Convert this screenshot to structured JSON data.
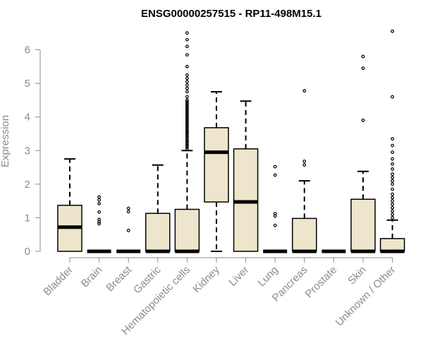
{
  "chart_data": {
    "type": "boxplot",
    "title": "ENSG00000257515 - RP11-498M15.1",
    "ylabel": "Expression",
    "xlabel": "",
    "ylim": [
      0,
      6.6
    ],
    "yticks": [
      0,
      1,
      2,
      3,
      4,
      5,
      6
    ],
    "box_fill": "#ede6cc",
    "outline_color": "#000000",
    "axis_color": "#8c8c8c",
    "categories": [
      "Bladder",
      "Brain",
      "Breast",
      "Gastric",
      "Hematopoietic cells",
      "Kidney",
      "Liver",
      "Lung",
      "Pancreas",
      "Prostate",
      "Skin",
      "Unknown / Other"
    ],
    "boxes": [
      {
        "q1": 0.0,
        "median": 0.72,
        "q3": 1.37,
        "whisker_low": 0.0,
        "whisker_high": 2.75,
        "outliers": []
      },
      {
        "q1": 0.0,
        "median": 0.0,
        "q3": 0.0,
        "whisker_low": 0.0,
        "whisker_high": 0.0,
        "outliers": [
          0.82,
          0.88,
          0.95,
          1.17,
          1.42,
          1.53,
          1.62
        ]
      },
      {
        "q1": 0.0,
        "median": 0.0,
        "q3": 0.0,
        "whisker_low": 0.0,
        "whisker_high": 0.0,
        "outliers": [
          0.62,
          1.18,
          1.28
        ]
      },
      {
        "q1": 0.0,
        "median": 0.0,
        "q3": 1.13,
        "whisker_low": 0.0,
        "whisker_high": 2.57,
        "outliers": []
      },
      {
        "q1": 0.0,
        "median": 0.0,
        "q3": 1.25,
        "whisker_low": 0.0,
        "whisker_high": 3.0,
        "outliers": [
          3.05,
          3.1,
          3.15,
          3.2,
          3.25,
          3.3,
          3.35,
          3.4,
          3.45,
          3.5,
          3.55,
          3.6,
          3.65,
          3.7,
          3.75,
          3.8,
          3.85,
          3.9,
          3.95,
          4.0,
          4.05,
          4.1,
          4.15,
          4.2,
          4.25,
          4.3,
          4.35,
          4.4,
          4.45,
          4.5,
          4.6,
          4.75,
          4.85,
          4.95,
          5.05,
          5.15,
          5.25,
          5.5,
          5.85,
          6.1,
          6.3,
          6.5
        ]
      },
      {
        "q1": 1.47,
        "median": 2.95,
        "q3": 3.68,
        "whisker_low": 0.0,
        "whisker_high": 4.75,
        "outliers": []
      },
      {
        "q1": 0.0,
        "median": 1.47,
        "q3": 3.05,
        "whisker_low": 0.0,
        "whisker_high": 4.47,
        "outliers": []
      },
      {
        "q1": 0.0,
        "median": 0.0,
        "q3": 0.0,
        "whisker_low": 0.0,
        "whisker_high": 0.0,
        "outliers": [
          0.77,
          1.05,
          1.12,
          2.27,
          2.52
        ]
      },
      {
        "q1": 0.0,
        "median": 0.0,
        "q3": 0.98,
        "whisker_low": 0.0,
        "whisker_high": 2.1,
        "outliers": [
          2.57,
          2.68,
          4.78
        ]
      },
      {
        "q1": 0.0,
        "median": 0.0,
        "q3": 0.0,
        "whisker_low": 0.0,
        "whisker_high": 0.0,
        "outliers": []
      },
      {
        "q1": 0.0,
        "median": 0.0,
        "q3": 1.55,
        "whisker_low": 0.0,
        "whisker_high": 2.38,
        "outliers": [
          3.9,
          5.45,
          5.8
        ]
      },
      {
        "q1": 0.0,
        "median": 0.0,
        "q3": 0.38,
        "whisker_low": 0.0,
        "whisker_high": 0.93,
        "outliers": [
          1.0,
          1.1,
          1.2,
          1.3,
          1.4,
          1.5,
          1.6,
          1.7,
          1.85,
          2.0,
          2.1,
          2.2,
          2.3,
          2.45,
          2.6,
          2.75,
          2.95,
          3.15,
          3.35,
          4.6,
          6.55
        ]
      }
    ]
  }
}
